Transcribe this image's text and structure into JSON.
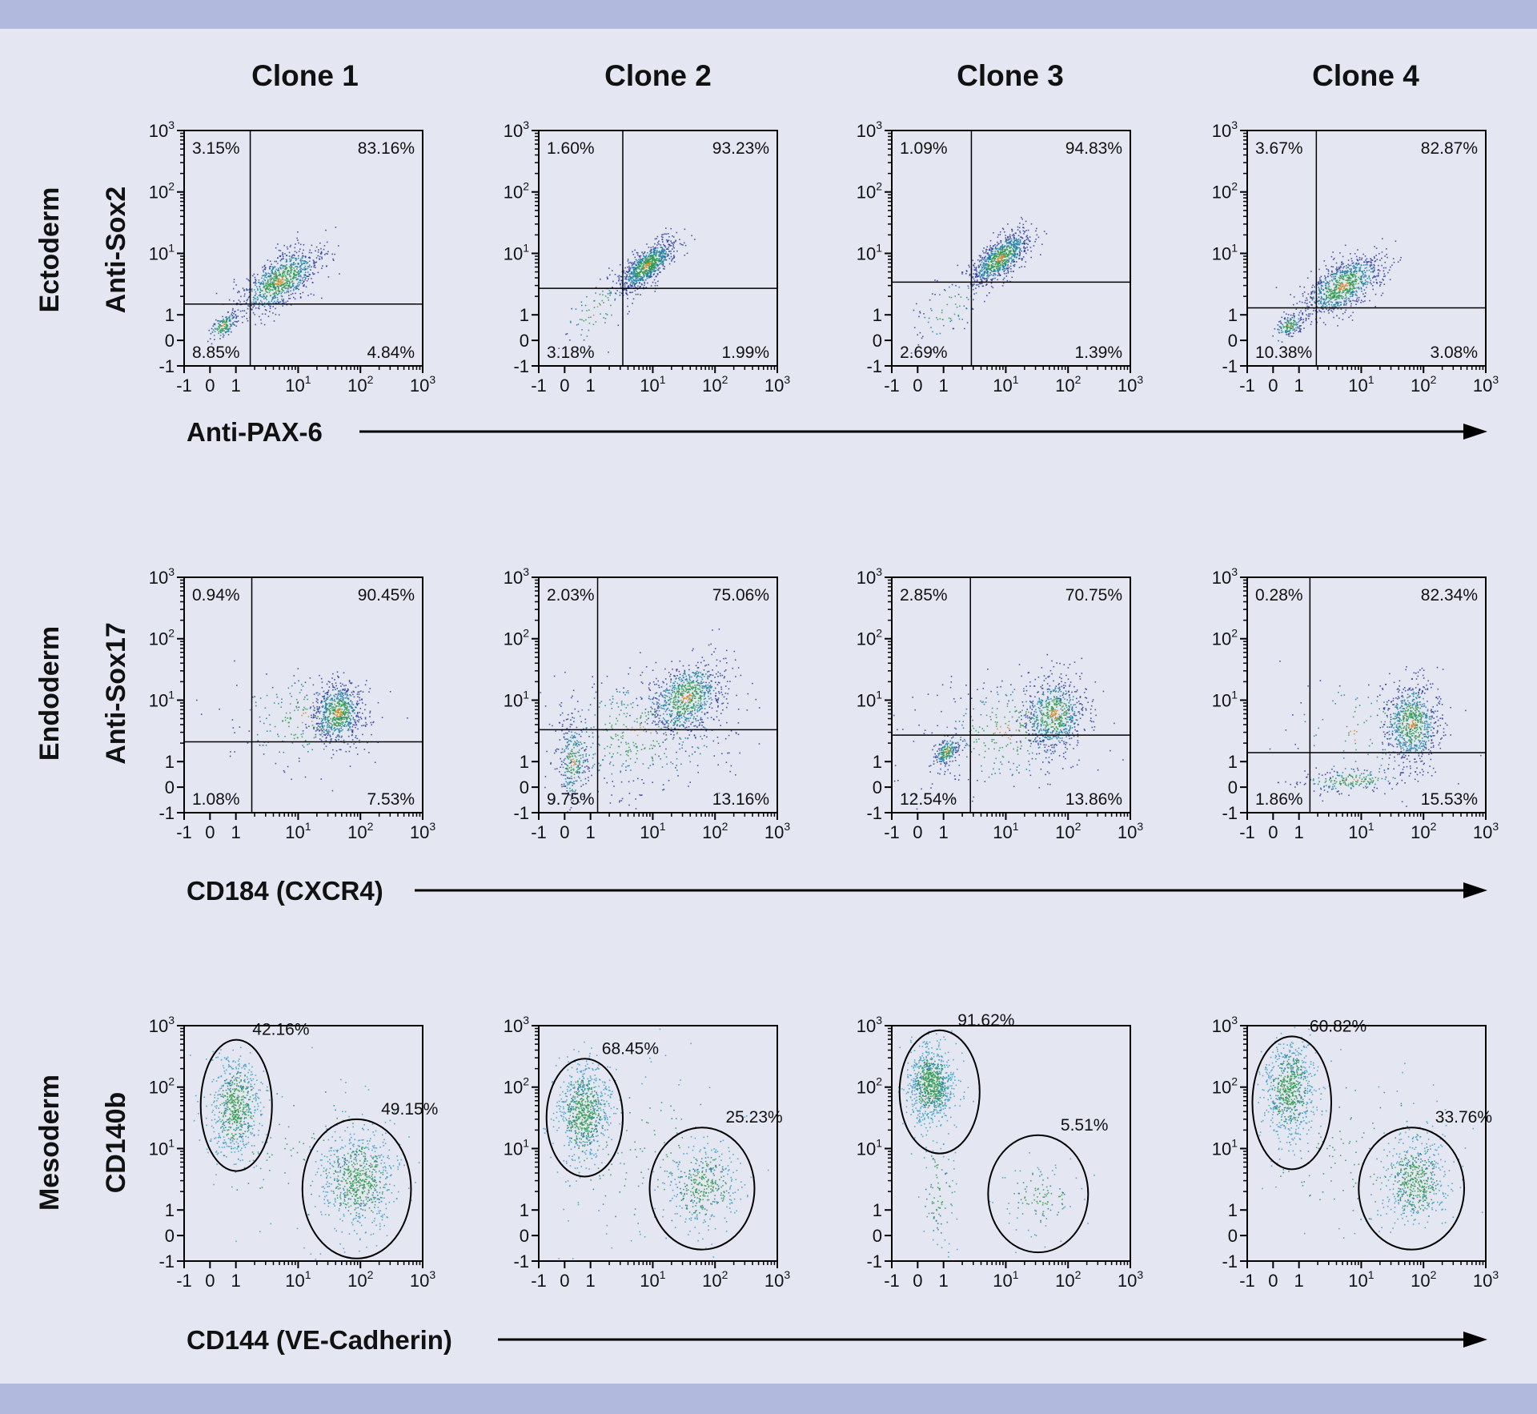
{
  "colors": {
    "background": "#e4e6f2",
    "band": "#b1b9dd",
    "outer": "#2b3d9a",
    "mid": "#1f7fa0",
    "core": "#2f9a4c",
    "hot": "#d08a2a",
    "meso_outer": "#3aa0c8"
  },
  "chart_data": {
    "type": "scatter",
    "title": "",
    "columns": [
      "Clone 1",
      "Clone 2",
      "Clone 3",
      "Clone 4"
    ],
    "axis_ticks": [
      "-1",
      "0",
      "1",
      "10",
      "10",
      "10"
    ],
    "axis_tick_values": [
      -1,
      0,
      1,
      10,
      100,
      1000
    ],
    "axis_tick_exponents": [
      "",
      "",
      "",
      "1",
      "2",
      "3"
    ],
    "xlim": [
      -1,
      1000
    ],
    "ylim": [
      -1,
      1000
    ],
    "rows": [
      {
        "name": "Ectoderm",
        "ylabel": "Anti-Sox2",
        "xlabel": "Anti-PAX-6",
        "gate_type": "quadrant",
        "panels": [
          {
            "gate": {
              "x": 1.7,
              "y": 1.5
            },
            "percents": {
              "ul": "3.15%",
              "ur": "83.16%",
              "ll": "8.85%",
              "lr": "4.84%"
            },
            "clusters": [
              {
                "x": 5,
                "y": 3.6,
                "sx": 0.33,
                "sy": 0.28,
                "rho": 0.65,
                "n": 900
              },
              {
                "x": 0.5,
                "y": 0.6,
                "sx": 0.12,
                "sy": 0.12,
                "rho": 0.5,
                "n": 150
              }
            ]
          },
          {
            "gate": {
              "x": 3.3,
              "y": 2.7
            },
            "percents": {
              "ul": "1.60%",
              "ur": "93.23%",
              "ll": "3.18%",
              "lr": "1.99%"
            },
            "clusters": [
              {
                "x": 8,
                "y": 6.5,
                "sx": 0.22,
                "sy": 0.2,
                "rho": 0.7,
                "n": 850
              },
              {
                "x": 1.2,
                "y": 1.2,
                "sx": 0.3,
                "sy": 0.3,
                "rho": 0.6,
                "n": 90
              }
            ]
          },
          {
            "gate": {
              "x": 2.8,
              "y": 3.4
            },
            "percents": {
              "ul": "1.09%",
              "ur": "94.83%",
              "ll": "2.69%",
              "lr": "1.39%"
            },
            "clusters": [
              {
                "x": 8,
                "y": 8.5,
                "sx": 0.24,
                "sy": 0.22,
                "rho": 0.7,
                "n": 850
              },
              {
                "x": 1.2,
                "y": 1.3,
                "sx": 0.3,
                "sy": 0.3,
                "rho": 0.6,
                "n": 80
              }
            ]
          },
          {
            "gate": {
              "x": 1.9,
              "y": 1.3
            },
            "percents": {
              "ul": "3.67%",
              "ur": "82.87%",
              "ll": "10.38%",
              "lr": "3.08%"
            },
            "clusters": [
              {
                "x": 5,
                "y": 3,
                "sx": 0.33,
                "sy": 0.25,
                "rho": 0.6,
                "n": 900
              },
              {
                "x": 0.6,
                "y": 0.6,
                "sx": 0.12,
                "sy": 0.1,
                "rho": 0.5,
                "n": 150
              }
            ]
          }
        ]
      },
      {
        "name": "Endoderm",
        "ylabel": "Anti-Sox17",
        "xlabel": "CD184 (CXCR4)",
        "gate_type": "quadrant",
        "panels": [
          {
            "gate": {
              "x": 1.8,
              "y": 2.1
            },
            "percents": {
              "ul": "0.94%",
              "ur": "90.45%",
              "ll": "1.08%",
              "lr": "7.53%"
            },
            "clusters": [
              {
                "x": 43,
                "y": 6.3,
                "sx": 0.2,
                "sy": 0.25,
                "rho": 0.1,
                "n": 700
              },
              {
                "x": 12,
                "y": 5,
                "sx": 0.6,
                "sy": 0.4,
                "rho": 0,
                "n": 200
              }
            ]
          },
          {
            "gate": {
              "x": 1.3,
              "y": 3.3
            },
            "percents": {
              "ul": "2.03%",
              "ur": "75.06%",
              "ll": "9.75%",
              "lr": "13.16%"
            },
            "clusters": [
              {
                "x": 34,
                "y": 11,
                "sx": 0.3,
                "sy": 0.3,
                "rho": 0.3,
                "n": 800
              },
              {
                "x": 0.3,
                "y": 1,
                "sx": 0.12,
                "sy": 0.35,
                "rho": 0,
                "n": 250
              },
              {
                "x": 6,
                "y": 3,
                "sx": 0.8,
                "sy": 0.5,
                "rho": 0,
                "n": 450
              }
            ]
          },
          {
            "gate": {
              "x": 2.7,
              "y": 2.7
            },
            "percents": {
              "ul": "2.85%",
              "ur": "70.75%",
              "ll": "12.54%",
              "lr": "13.86%"
            },
            "clusters": [
              {
                "x": 60,
                "y": 5.9,
                "sx": 0.25,
                "sy": 0.3,
                "rho": 0.1,
                "n": 650
              },
              {
                "x": 1.1,
                "y": 1.5,
                "sx": 0.1,
                "sy": 0.12,
                "rho": 0.4,
                "n": 200
              },
              {
                "x": 10,
                "y": 3,
                "sx": 0.7,
                "sy": 0.5,
                "rho": 0.2,
                "n": 350
              }
            ]
          },
          {
            "gate": {
              "x": 1.5,
              "y": 1.4
            },
            "percents": {
              "ul": "0.28%",
              "ur": "82.34%",
              "ll": "1.86%",
              "lr": "15.53%"
            },
            "clusters": [
              {
                "x": 64,
                "y": 4.2,
                "sx": 0.22,
                "sy": 0.35,
                "rho": 0,
                "n": 750
              },
              {
                "x": 7,
                "y": 0.3,
                "sx": 0.5,
                "sy": 0.1,
                "rho": 0.3,
                "n": 200
              },
              {
                "x": 10,
                "y": 3,
                "sx": 0.7,
                "sy": 0.5,
                "rho": 0,
                "n": 120
              }
            ]
          }
        ]
      },
      {
        "name": "Mesoderm",
        "ylabel": "CD140b",
        "xlabel": "CD144 (VE-Cadherin)",
        "gate_type": "ellipse",
        "panels": [
          {
            "gates": [
              {
                "xr": [
                  -0.36,
                  3.8
                ],
                "yr": [
                  4.3,
                  590
                ],
                "label": "42.16%"
              },
              {
                "xr": [
                  11.7,
                  650
                ],
                "yr": [
                  -0.9,
                  30
                ],
                "label": "49.15%"
              }
            ],
            "clusters": [
              {
                "x": 1,
                "y": 50,
                "sx": 0.2,
                "sy": 0.4,
                "rho": 0,
                "n": 650
              },
              {
                "x": 90,
                "y": 3,
                "sx": 0.3,
                "sy": 0.4,
                "rho": 0,
                "n": 700
              },
              {
                "x": 8,
                "y": 8,
                "sx": 0.9,
                "sy": 0.8,
                "rho": 0,
                "n": 120
              }
            ]
          },
          {
            "gates": [
              {
                "xr": [
                  -0.7,
                  3.3
                ],
                "yr": [
                  3.5,
                  290
                ],
                "label": "68.45%"
              },
              {
                "xr": [
                  8.9,
                  430
                ],
                "yr": [
                  -0.55,
                  22
                ],
                "label": "25.23%"
              }
            ],
            "clusters": [
              {
                "x": 0.7,
                "y": 38,
                "sx": 0.2,
                "sy": 0.4,
                "rho": 0,
                "n": 750
              },
              {
                "x": 63,
                "y": 2.5,
                "sx": 0.3,
                "sy": 0.35,
                "rho": 0,
                "n": 400
              },
              {
                "x": 8,
                "y": 8,
                "sx": 0.9,
                "sy": 0.8,
                "rho": 0,
                "n": 150
              }
            ]
          },
          {
            "gates": [
              {
                "xr": [
                  -0.7,
                  3.8
                ],
                "yr": [
                  8.3,
                  840
                ],
                "label": "91.62%"
              },
              {
                "xr": [
                  5.2,
                  210
                ],
                "yr": [
                  -0.66,
                  16.5
                ],
                "label": "5.51%"
              }
            ],
            "clusters": [
              {
                "x": 0.5,
                "y": 115,
                "sx": 0.18,
                "sy": 0.3,
                "rho": 0,
                "n": 850
              },
              {
                "x": 33,
                "y": 1.7,
                "sx": 0.3,
                "sy": 0.3,
                "rho": 0,
                "n": 120
              },
              {
                "x": 0.8,
                "y": 2,
                "sx": 0.15,
                "sy": 0.5,
                "rho": 0,
                "n": 100
              }
            ]
          },
          {
            "gates": [
              {
                "xr": [
                  -0.8,
                  3.3
                ],
                "yr": [
                  4.6,
                  670
                ],
                "label": "60.82%"
              },
              {
                "xr": [
                  9.1,
                  450
                ],
                "yr": [
                  -0.55,
                  22
                ],
                "label": "33.76%"
              }
            ],
            "clusters": [
              {
                "x": 0.6,
                "y": 93,
                "sx": 0.2,
                "sy": 0.4,
                "rho": 0,
                "n": 700
              },
              {
                "x": 72,
                "y": 3,
                "sx": 0.25,
                "sy": 0.35,
                "rho": 0,
                "n": 550
              },
              {
                "x": 8,
                "y": 8,
                "sx": 0.9,
                "sy": 0.8,
                "rho": 0,
                "n": 150
              }
            ]
          }
        ]
      }
    ]
  }
}
